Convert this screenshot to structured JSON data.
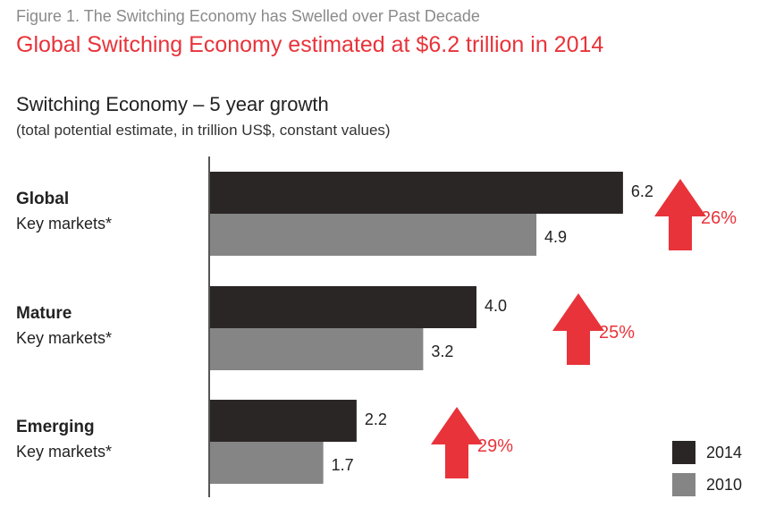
{
  "header": {
    "figure_label": "Figure 1. The Switching Economy has Swelled over Past Decade",
    "headline": "Global Switching Economy estimated at $6.2 trillion in 2014"
  },
  "chart_data": {
    "type": "bar",
    "orientation": "horizontal",
    "title": "Switching Economy – 5 year growth",
    "subtitle": "(total potential estimate, in trillion US$, constant values)",
    "categories": [
      {
        "name": "Global",
        "sub": "Key markets*"
      },
      {
        "name": "Mature",
        "sub": "Key markets*"
      },
      {
        "name": "Emerging",
        "sub": "Key markets*"
      }
    ],
    "series": [
      {
        "name": "2014",
        "color": "#2b2626",
        "values": [
          6.2,
          4.0,
          2.2
        ],
        "labels": [
          "6.2",
          "4.0",
          "2.2"
        ]
      },
      {
        "name": "2010",
        "color": "#858585",
        "values": [
          4.9,
          3.2,
          1.7
        ],
        "labels": [
          "4.9",
          "3.2",
          "1.7"
        ]
      }
    ],
    "growth": [
      "26%",
      "25%",
      "29%"
    ],
    "growth_color": "#e8333a",
    "xlim": [
      0,
      7.5
    ],
    "grid": false,
    "legend_position": "bottom-right"
  }
}
